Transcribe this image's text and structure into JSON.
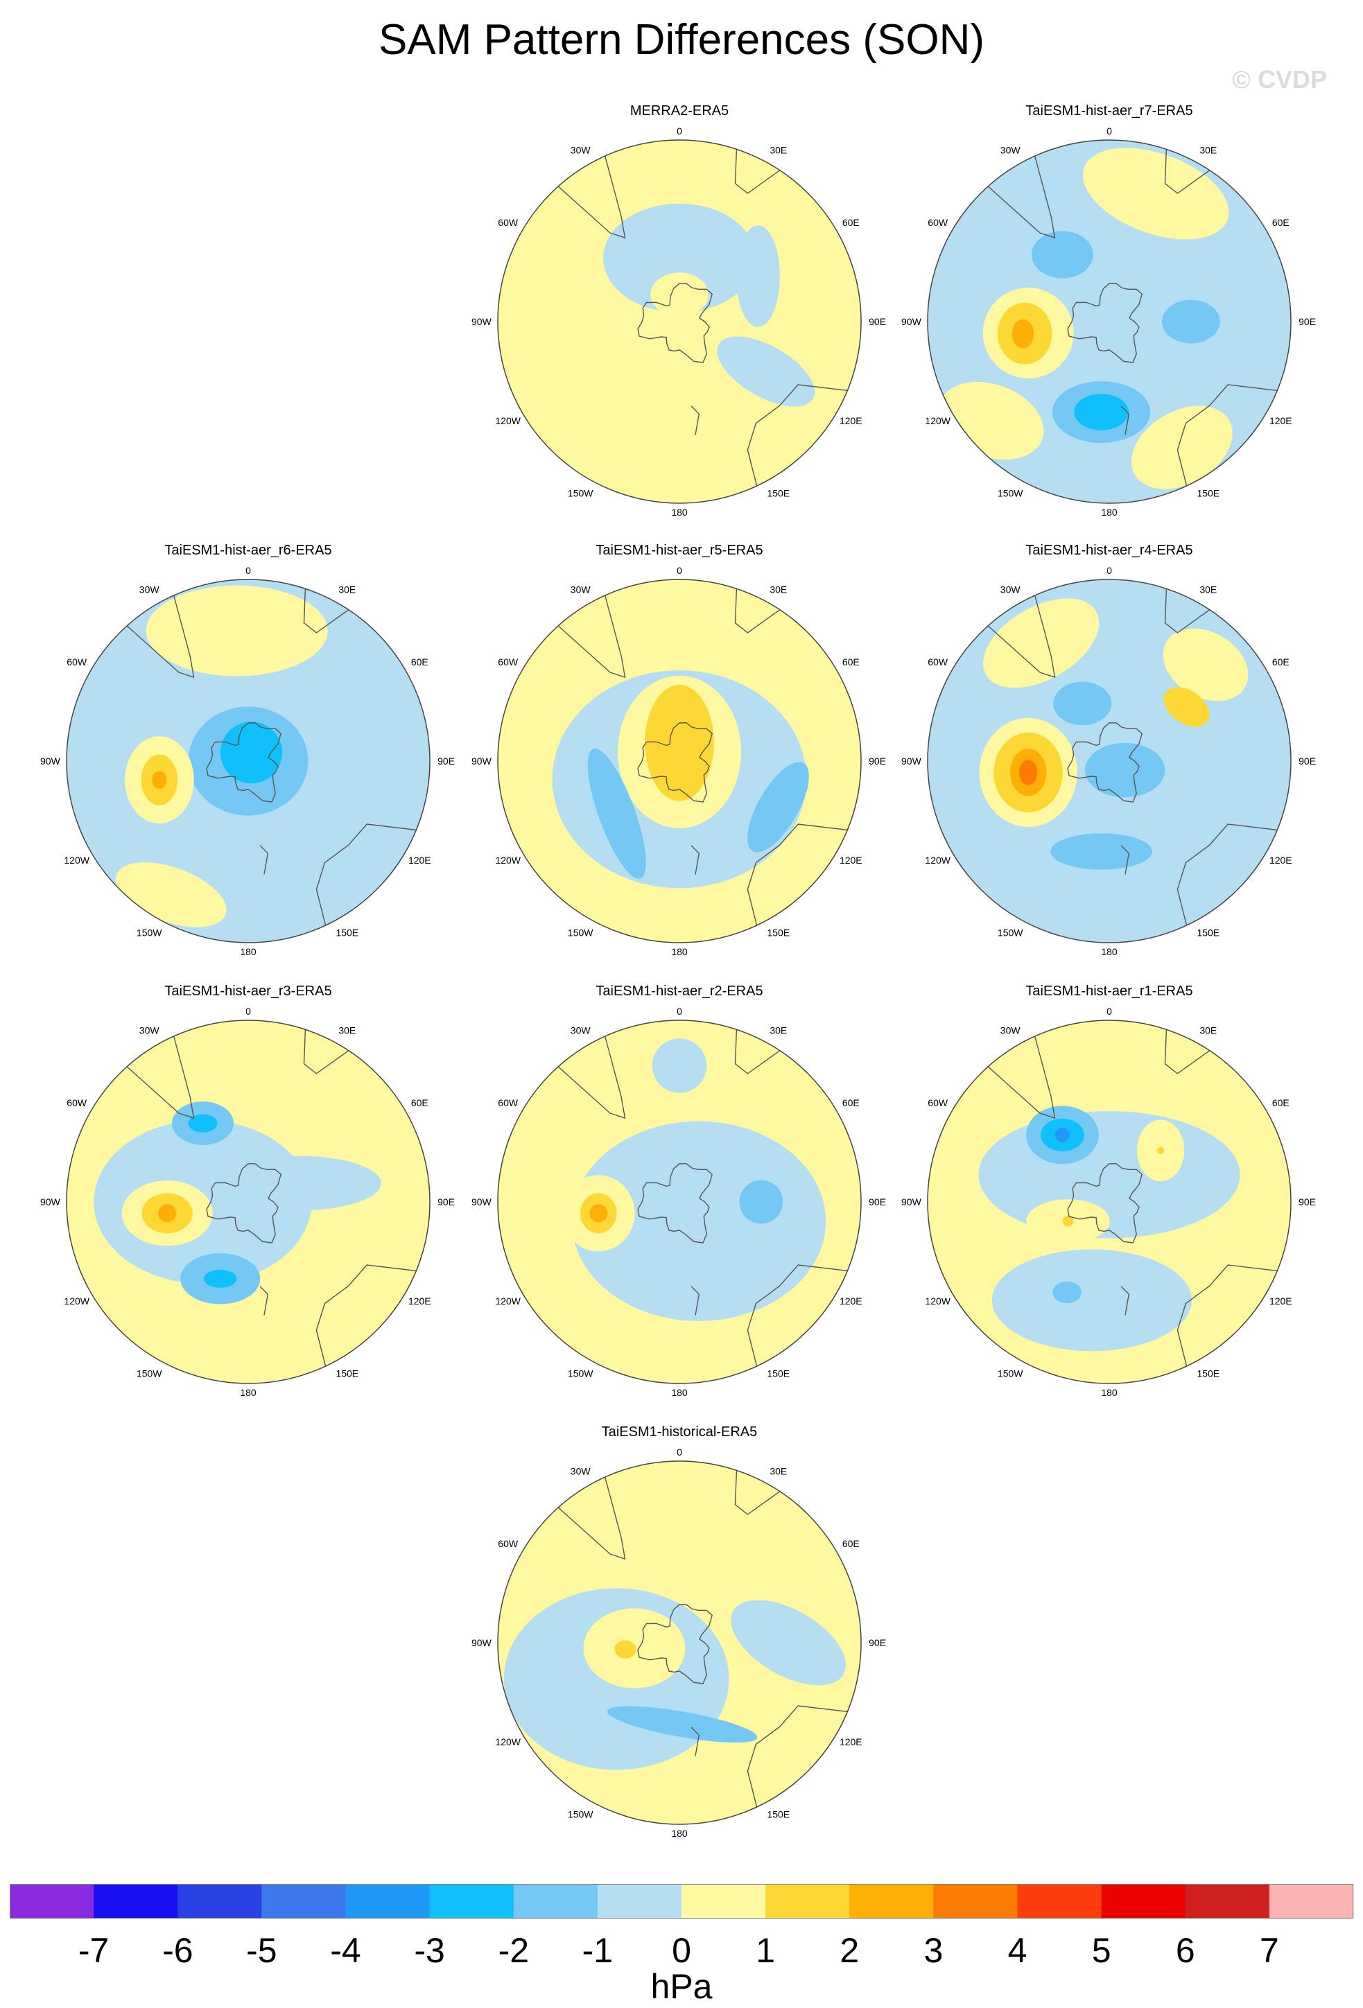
{
  "title": "SAM Pattern Differences (SON)",
  "watermark": "© CVDP",
  "longitude_labels": [
    "0",
    "30E",
    "60E",
    "90E",
    "120E",
    "150E",
    "180",
    "150W",
    "120W",
    "90W",
    "60W",
    "30W"
  ],
  "colors": {
    "land_outline": "#555555",
    "circle_outline": "#444444",
    "levels": [
      "#8a2be2",
      "#1a10f5",
      "#2a41e6",
      "#3c78ec",
      "#1f99f7",
      "#10c0fc",
      "#74c8f3",
      "#b5def2",
      "#fef9a0",
      "#fdd835",
      "#fdaf06",
      "#fe7b02",
      "#fe3d0f",
      "#ec0000",
      "#d02020",
      "#ffb4b4"
    ]
  },
  "colorbar": {
    "labels": [
      "-7",
      "-6",
      "-5",
      "-4",
      "-3",
      "-2",
      "-1",
      "0",
      "1",
      "2",
      "3",
      "4",
      "5",
      "6",
      "7"
    ],
    "unit": "hPa"
  },
  "panels": [
    {
      "id": "p1",
      "title": "MERRA2-ERA5",
      "base": 8,
      "blobs": [
        {
          "lv": 7,
          "a": 0,
          "d": 0.35,
          "rx": 0.42,
          "ry": 0.3,
          "rot": 0
        },
        {
          "lv": 7,
          "a": 120,
          "d": 0.55,
          "rx": 0.3,
          "ry": 0.14,
          "rot": 30
        },
        {
          "lv": 7,
          "a": 60,
          "d": 0.5,
          "rx": 0.12,
          "ry": 0.28,
          "rot": 0
        },
        {
          "lv": 8,
          "a": 0,
          "d": 0.15,
          "rx": 0.16,
          "ry": 0.12,
          "rot": 0
        }
      ]
    },
    {
      "id": "p2",
      "title": "TaiESM1-hist-aer_r7-ERA5",
      "base": 7,
      "blobs": [
        {
          "lv": 8,
          "a": 20,
          "d": 0.75,
          "rx": 0.42,
          "ry": 0.22,
          "rot": 20
        },
        {
          "lv": 8,
          "a": 150,
          "d": 0.8,
          "rx": 0.3,
          "ry": 0.2,
          "rot": -30
        },
        {
          "lv": 8,
          "a": 230,
          "d": 0.85,
          "rx": 0.3,
          "ry": 0.2,
          "rot": 20
        },
        {
          "lv": 6,
          "a": 325,
          "d": 0.45,
          "rx": 0.17,
          "ry": 0.13,
          "rot": 0
        },
        {
          "lv": 6,
          "a": 90,
          "d": 0.45,
          "rx": 0.16,
          "ry": 0.12,
          "rot": 0
        },
        {
          "lv": 6,
          "a": 185,
          "d": 0.5,
          "rx": 0.27,
          "ry": 0.17,
          "rot": 0
        },
        {
          "lv": 5,
          "a": 185,
          "d": 0.5,
          "rx": 0.15,
          "ry": 0.1,
          "rot": 0
        },
        {
          "lv": 8,
          "a": 262,
          "d": 0.45,
          "rx": 0.25,
          "ry": 0.25,
          "rot": 0
        },
        {
          "lv": 9,
          "a": 262,
          "d": 0.47,
          "rx": 0.15,
          "ry": 0.17,
          "rot": 0
        },
        {
          "lv": 10,
          "a": 262,
          "d": 0.48,
          "rx": 0.06,
          "ry": 0.08,
          "rot": 0
        }
      ]
    },
    {
      "id": "p3",
      "title": "TaiESM1-hist-aer_r6-ERA5",
      "base": 7,
      "blobs": [
        {
          "lv": 8,
          "a": 355,
          "d": 0.72,
          "rx": 0.5,
          "ry": 0.25,
          "rot": 0
        },
        {
          "lv": 8,
          "a": 210,
          "d": 0.85,
          "rx": 0.32,
          "ry": 0.15,
          "rot": 20
        },
        {
          "lv": 6,
          "a": 0,
          "d": 0.0,
          "rx": 0.33,
          "ry": 0.3,
          "rot": 0
        },
        {
          "lv": 5,
          "a": 20,
          "d": 0.05,
          "rx": 0.17,
          "ry": 0.17,
          "rot": 0
        },
        {
          "lv": 8,
          "a": 258,
          "d": 0.5,
          "rx": 0.19,
          "ry": 0.24,
          "rot": 0
        },
        {
          "lv": 9,
          "a": 258,
          "d": 0.5,
          "rx": 0.1,
          "ry": 0.14,
          "rot": 0
        },
        {
          "lv": 10,
          "a": 258,
          "d": 0.5,
          "rx": 0.04,
          "ry": 0.05,
          "rot": 0
        }
      ]
    },
    {
      "id": "p4",
      "title": "TaiESM1-hist-aer_r5-ERA5",
      "base": 8,
      "blobs": [
        {
          "lv": 7,
          "a": 180,
          "d": 0.1,
          "rx": 0.7,
          "ry": 0.6,
          "rot": 0
        },
        {
          "lv": 8,
          "a": 0,
          "d": 0.05,
          "rx": 0.34,
          "ry": 0.42,
          "rot": 0
        },
        {
          "lv": 9,
          "a": 0,
          "d": 0.1,
          "rx": 0.19,
          "ry": 0.32,
          "rot": 0
        },
        {
          "lv": 6,
          "a": 230,
          "d": 0.45,
          "rx": 0.1,
          "ry": 0.38,
          "rot": -20
        },
        {
          "lv": 6,
          "a": 115,
          "d": 0.6,
          "rx": 0.11,
          "ry": 0.28,
          "rot": 30
        }
      ]
    },
    {
      "id": "p5",
      "title": "TaiESM1-hist-aer_r4-ERA5",
      "base": 7,
      "blobs": [
        {
          "lv": 8,
          "a": 330,
          "d": 0.75,
          "rx": 0.35,
          "ry": 0.2,
          "rot": -30
        },
        {
          "lv": 8,
          "a": 45,
          "d": 0.75,
          "rx": 0.25,
          "ry": 0.18,
          "rot": 30
        },
        {
          "lv": 9,
          "a": 55,
          "d": 0.52,
          "rx": 0.14,
          "ry": 0.09,
          "rot": 35
        },
        {
          "lv": 6,
          "a": 335,
          "d": 0.35,
          "rx": 0.16,
          "ry": 0.12,
          "rot": 0
        },
        {
          "lv": 6,
          "a": 120,
          "d": 0.1,
          "rx": 0.22,
          "ry": 0.15,
          "rot": 0
        },
        {
          "lv": 6,
          "a": 185,
          "d": 0.5,
          "rx": 0.28,
          "ry": 0.1,
          "rot": 0
        },
        {
          "lv": 8,
          "a": 262,
          "d": 0.45,
          "rx": 0.27,
          "ry": 0.3,
          "rot": 0
        },
        {
          "lv": 9,
          "a": 262,
          "d": 0.45,
          "rx": 0.19,
          "ry": 0.22,
          "rot": 0
        },
        {
          "lv": 10,
          "a": 262,
          "d": 0.45,
          "rx": 0.1,
          "ry": 0.13,
          "rot": 0
        },
        {
          "lv": 11,
          "a": 262,
          "d": 0.45,
          "rx": 0.05,
          "ry": 0.07,
          "rot": 0
        }
      ]
    },
    {
      "id": "p6",
      "title": "TaiESM1-hist-aer_r3-ERA5",
      "base": 8,
      "blobs": [
        {
          "lv": 7,
          "a": 270,
          "d": 0.25,
          "rx": 0.6,
          "ry": 0.45,
          "rot": 0
        },
        {
          "lv": 7,
          "a": 70,
          "d": 0.3,
          "rx": 0.45,
          "ry": 0.15,
          "rot": 0
        },
        {
          "lv": 6,
          "a": 330,
          "d": 0.5,
          "rx": 0.17,
          "ry": 0.12,
          "rot": 0
        },
        {
          "lv": 5,
          "a": 330,
          "d": 0.5,
          "rx": 0.08,
          "ry": 0.05,
          "rot": 0
        },
        {
          "lv": 6,
          "a": 200,
          "d": 0.45,
          "rx": 0.22,
          "ry": 0.14,
          "rot": 0
        },
        {
          "lv": 5,
          "a": 200,
          "d": 0.45,
          "rx": 0.09,
          "ry": 0.05,
          "rot": 0
        },
        {
          "lv": 8,
          "a": 262,
          "d": 0.45,
          "rx": 0.25,
          "ry": 0.18,
          "rot": 0
        },
        {
          "lv": 9,
          "a": 262,
          "d": 0.45,
          "rx": 0.14,
          "ry": 0.11,
          "rot": 0
        },
        {
          "lv": 10,
          "a": 262,
          "d": 0.45,
          "rx": 0.05,
          "ry": 0.05,
          "rot": 0
        }
      ]
    },
    {
      "id": "p7",
      "title": "TaiESM1-hist-aer_r2-ERA5",
      "base": 8,
      "blobs": [
        {
          "lv": 7,
          "a": 135,
          "d": 0.15,
          "rx": 0.7,
          "ry": 0.55,
          "rot": 0
        },
        {
          "lv": 7,
          "a": 0,
          "d": 0.75,
          "rx": 0.15,
          "ry": 0.15,
          "rot": 0
        },
        {
          "lv": 6,
          "a": 90,
          "d": 0.45,
          "rx": 0.12,
          "ry": 0.12,
          "rot": 0
        },
        {
          "lv": 8,
          "a": 262,
          "d": 0.45,
          "rx": 0.2,
          "ry": 0.21,
          "rot": 0
        },
        {
          "lv": 9,
          "a": 262,
          "d": 0.45,
          "rx": 0.1,
          "ry": 0.11,
          "rot": 0
        },
        {
          "lv": 10,
          "a": 262,
          "d": 0.45,
          "rx": 0.05,
          "ry": 0.05,
          "rot": 0
        }
      ]
    },
    {
      "id": "p8",
      "title": "TaiESM1-hist-aer_r1-ERA5",
      "base": 8,
      "blobs": [
        {
          "lv": 7,
          "a": 0,
          "d": 0.15,
          "rx": 0.72,
          "ry": 0.35,
          "rot": 0
        },
        {
          "lv": 7,
          "a": 190,
          "d": 0.55,
          "rx": 0.55,
          "ry": 0.28,
          "rot": 0
        },
        {
          "lv": 6,
          "a": 325,
          "d": 0.45,
          "rx": 0.2,
          "ry": 0.16,
          "rot": 0
        },
        {
          "lv": 5,
          "a": 325,
          "d": 0.45,
          "rx": 0.12,
          "ry": 0.09,
          "rot": 0
        },
        {
          "lv": 4,
          "a": 325,
          "d": 0.45,
          "rx": 0.04,
          "ry": 0.04,
          "rot": 0
        },
        {
          "lv": 8,
          "a": 45,
          "d": 0.4,
          "rx": 0.13,
          "ry": 0.17,
          "rot": 0
        },
        {
          "lv": 9,
          "a": 45,
          "d": 0.4,
          "rx": 0.02,
          "ry": 0.02,
          "rot": 0
        },
        {
          "lv": 8,
          "a": 245,
          "d": 0.25,
          "rx": 0.23,
          "ry": 0.12,
          "rot": 0
        },
        {
          "lv": 9,
          "a": 245,
          "d": 0.25,
          "rx": 0.03,
          "ry": 0.03,
          "rot": 0
        },
        {
          "lv": 6,
          "a": 205,
          "d": 0.55,
          "rx": 0.08,
          "ry": 0.06,
          "rot": 0
        }
      ]
    },
    {
      "id": "p9",
      "title": "TaiESM1-historical-ERA5",
      "base": 8,
      "blobs": [
        {
          "lv": 7,
          "a": 240,
          "d": 0.4,
          "rx": 0.62,
          "ry": 0.5,
          "rot": 0
        },
        {
          "lv": 7,
          "a": 90,
          "d": 0.6,
          "rx": 0.35,
          "ry": 0.18,
          "rot": 30
        },
        {
          "lv": 6,
          "a": 178,
          "d": 0.45,
          "rx": 0.42,
          "ry": 0.07,
          "rot": 10
        },
        {
          "lv": 8,
          "a": 263,
          "d": 0.25,
          "rx": 0.28,
          "ry": 0.22,
          "rot": 0
        },
        {
          "lv": 9,
          "a": 263,
          "d": 0.3,
          "rx": 0.06,
          "ry": 0.05,
          "rot": 0
        }
      ]
    }
  ]
}
